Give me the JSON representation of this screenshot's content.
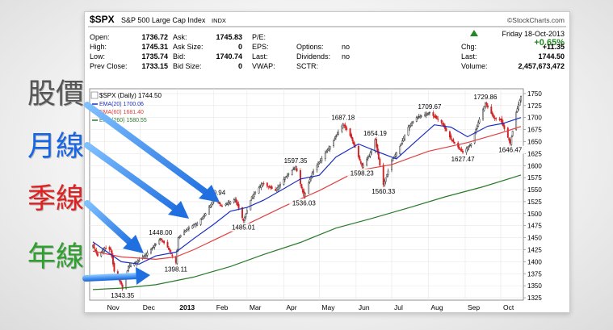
{
  "labels": {
    "stock": "股價",
    "monthly": "月線",
    "quarterly": "季線",
    "yearly": "年線"
  },
  "colors": {
    "stock": "#555555",
    "monthly": "#1565e6",
    "quarterly": "#e02020",
    "yearly": "#2ea02e",
    "arrow": "#2f86e8",
    "up": "#333333",
    "down": "#d02020",
    "ema20": "#1a2ec0",
    "ema60": "#e04040",
    "ema260": "#2a7a2a",
    "gain": "#228822"
  },
  "icons": {
    "arrow": "blue-arrow",
    "trend": "up-triangle-icon"
  },
  "header": {
    "symbol": "$SPX",
    "name": "S&P 500 Large Cap Index",
    "exchange": "INDX",
    "brand": "©StockCharts.com",
    "date": "Friday 18-Oct-2013",
    "change_pct": "+0.65%",
    "fields": [
      {
        "label": "Open:",
        "value": "1736.72"
      },
      {
        "label": "High:",
        "value": "1745.31"
      },
      {
        "label": "Low:",
        "value": "1735.74"
      },
      {
        "label": "Prev Close:",
        "value": "1733.15"
      },
      {
        "label": "Ask:",
        "value": "1745.83"
      },
      {
        "label": "Ask Size:",
        "value": "0"
      },
      {
        "label": "Bid:",
        "value": "1740.74"
      },
      {
        "label": "Bid Size:",
        "value": "0"
      },
      {
        "label": "P/E:",
        "value": ""
      },
      {
        "label": "EPS:",
        "value": ""
      },
      {
        "label": "Last:",
        "value": ""
      },
      {
        "label": "VWAP:",
        "value": ""
      },
      {
        "label": "Options:",
        "value": "no"
      },
      {
        "label": "Dividends:",
        "value": "no"
      },
      {
        "label": "SCTR:",
        "value": ""
      },
      {
        "label": "Chg:",
        "value": "+11.35"
      },
      {
        "label": "Last:",
        "value": "1744.50"
      },
      {
        "label": "Volume:",
        "value": "2,457,673,472"
      }
    ]
  },
  "chart_data": {
    "type": "line",
    "title": "$SPX S&P 500 Large Cap Index",
    "price_label": "$SPX (Daily) 1744.50",
    "ylim": [
      1320,
      1760
    ],
    "x_months": [
      "Nov",
      "Dec",
      "2013",
      "Feb",
      "Mar",
      "Apr",
      "May",
      "Jun",
      "Jul",
      "Aug",
      "Sep",
      "Oct"
    ],
    "y_ticks": [
      1325,
      1350,
      1375,
      1400,
      1425,
      1450,
      1475,
      1500,
      1525,
      1550,
      1575,
      1600,
      1625,
      1650,
      1675,
      1700,
      1725,
      1750
    ],
    "legend": [
      "EMA(20) 1700.06",
      "EMA(60) 1681.40",
      "EMA(260) 1580.55"
    ],
    "annotations": [
      {
        "date": "2012-11-16",
        "value": 1343.35,
        "label": "1343.35"
      },
      {
        "date": "2012-12-18",
        "value": 1448.0,
        "label": "1448.00"
      },
      {
        "date": "2012-12-31",
        "value": 1398.11,
        "label": "1398.11"
      },
      {
        "date": "2013-02-01",
        "value": 1530.94,
        "label": "1530.94"
      },
      {
        "date": "2013-02-26",
        "value": 1485.01,
        "label": "1485.01"
      },
      {
        "date": "2013-04-11",
        "value": 1597.35,
        "label": "1597.35"
      },
      {
        "date": "2013-04-18",
        "value": 1536.03,
        "label": "1536.03"
      },
      {
        "date": "2013-05-21",
        "value": 1687.18,
        "label": "1687.18"
      },
      {
        "date": "2013-06-06",
        "value": 1598.23,
        "label": "1598.23"
      },
      {
        "date": "2013-06-17",
        "value": 1654.19,
        "label": "1654.19"
      },
      {
        "date": "2013-06-24",
        "value": 1560.33,
        "label": "1560.33"
      },
      {
        "date": "2013-08-02",
        "value": 1709.67,
        "label": "1709.67"
      },
      {
        "date": "2013-08-30",
        "value": 1627.47,
        "label": "1627.47"
      },
      {
        "date": "2013-09-18",
        "value": 1729.86,
        "label": "1729.86"
      },
      {
        "date": "2013-10-09",
        "value": 1646.47,
        "label": "1646.47"
      }
    ],
    "price_path": [
      [
        "2012-10-22",
        1434
      ],
      [
        "2012-10-26",
        1412
      ],
      [
        "2012-11-01",
        1428
      ],
      [
        "2012-11-06",
        1425
      ],
      [
        "2012-11-09",
        1380
      ],
      [
        "2012-11-15",
        1353
      ],
      [
        "2012-11-16",
        1343.35
      ],
      [
        "2012-11-21",
        1390
      ],
      [
        "2012-11-28",
        1400
      ],
      [
        "2012-12-05",
        1413
      ],
      [
        "2012-12-11",
        1428
      ],
      [
        "2012-12-18",
        1448.0
      ],
      [
        "2012-12-24",
        1430
      ],
      [
        "2012-12-31",
        1398.11
      ],
      [
        "2013-01-02",
        1450
      ],
      [
        "2013-01-10",
        1470
      ],
      [
        "2013-01-18",
        1480
      ],
      [
        "2013-01-25",
        1500
      ],
      [
        "2013-02-01",
        1530.94
      ],
      [
        "2013-02-08",
        1516
      ],
      [
        "2013-02-19",
        1530
      ],
      [
        "2013-02-26",
        1485.01
      ],
      [
        "2013-03-05",
        1535
      ],
      [
        "2013-03-14",
        1563
      ],
      [
        "2013-03-25",
        1548
      ],
      [
        "2013-04-02",
        1575
      ],
      [
        "2013-04-11",
        1597.35
      ],
      [
        "2013-04-18",
        1536.03
      ],
      [
        "2013-04-25",
        1585
      ],
      [
        "2013-05-03",
        1615
      ],
      [
        "2013-05-10",
        1640
      ],
      [
        "2013-05-16",
        1665
      ],
      [
        "2013-05-21",
        1687.18
      ],
      [
        "2013-05-28",
        1658
      ],
      [
        "2013-06-06",
        1598.23
      ],
      [
        "2013-06-12",
        1620
      ],
      [
        "2013-06-17",
        1654.19
      ],
      [
        "2013-06-24",
        1560.33
      ],
      [
        "2013-07-01",
        1610
      ],
      [
        "2013-07-08",
        1640
      ],
      [
        "2013-07-15",
        1680
      ],
      [
        "2013-07-22",
        1700
      ],
      [
        "2013-08-02",
        1709.67
      ],
      [
        "2013-08-12",
        1690
      ],
      [
        "2013-08-20",
        1655
      ],
      [
        "2013-08-30",
        1627.47
      ],
      [
        "2013-09-06",
        1645
      ],
      [
        "2013-09-12",
        1690
      ],
      [
        "2013-09-18",
        1729.86
      ],
      [
        "2013-09-25",
        1700
      ],
      [
        "2013-10-01",
        1695
      ],
      [
        "2013-10-09",
        1646.47
      ],
      [
        "2013-10-14",
        1710
      ],
      [
        "2013-10-18",
        1744.5
      ]
    ],
    "series": [
      {
        "name": "EMA(20) 1700.06",
        "values": [
          [
            "2012-10-22",
            1441
          ],
          [
            "2012-11-15",
            1400
          ],
          [
            "2012-11-30",
            1395
          ],
          [
            "2012-12-14",
            1412
          ],
          [
            "2012-12-31",
            1420
          ],
          [
            "2013-01-15",
            1448
          ],
          [
            "2013-02-01",
            1478
          ],
          [
            "2013-02-15",
            1505
          ],
          [
            "2013-03-01",
            1513
          ],
          [
            "2013-03-15",
            1528
          ],
          [
            "2013-04-01",
            1552
          ],
          [
            "2013-04-15",
            1572
          ],
          [
            "2013-05-01",
            1580
          ],
          [
            "2013-05-15",
            1618
          ],
          [
            "2013-06-03",
            1645
          ],
          [
            "2013-06-20",
            1628
          ],
          [
            "2013-07-05",
            1614
          ],
          [
            "2013-07-22",
            1652
          ],
          [
            "2013-08-06",
            1685
          ],
          [
            "2013-08-20",
            1680
          ],
          [
            "2013-09-03",
            1660
          ],
          [
            "2013-09-20",
            1682
          ],
          [
            "2013-10-03",
            1688
          ],
          [
            "2013-10-18",
            1700.06
          ]
        ]
      },
      {
        "name": "EMA(60) 1681.40",
        "values": [
          [
            "2012-10-22",
            1422
          ],
          [
            "2012-11-15",
            1410
          ],
          [
            "2012-12-14",
            1405
          ],
          [
            "2012-12-31",
            1410
          ],
          [
            "2013-01-15",
            1425
          ],
          [
            "2013-02-01",
            1445
          ],
          [
            "2013-03-01",
            1478
          ],
          [
            "2013-04-01",
            1515
          ],
          [
            "2013-05-01",
            1548
          ],
          [
            "2013-06-03",
            1590
          ],
          [
            "2013-07-01",
            1602
          ],
          [
            "2013-08-01",
            1630
          ],
          [
            "2013-09-03",
            1648
          ],
          [
            "2013-10-01",
            1668
          ],
          [
            "2013-10-18",
            1681.4
          ]
        ]
      },
      {
        "name": "EMA(260) 1580.55",
        "values": [
          [
            "2012-10-22",
            1342
          ],
          [
            "2012-11-15",
            1345
          ],
          [
            "2012-12-14",
            1352
          ],
          [
            "2013-01-15",
            1368
          ],
          [
            "2013-02-15",
            1390
          ],
          [
            "2013-03-15",
            1415
          ],
          [
            "2013-04-15",
            1440
          ],
          [
            "2013-05-15",
            1470
          ],
          [
            "2013-06-14",
            1490
          ],
          [
            "2013-07-15",
            1512
          ],
          [
            "2013-08-15",
            1535
          ],
          [
            "2013-09-16",
            1556
          ],
          [
            "2013-10-18",
            1580.55
          ]
        ]
      }
    ]
  }
}
